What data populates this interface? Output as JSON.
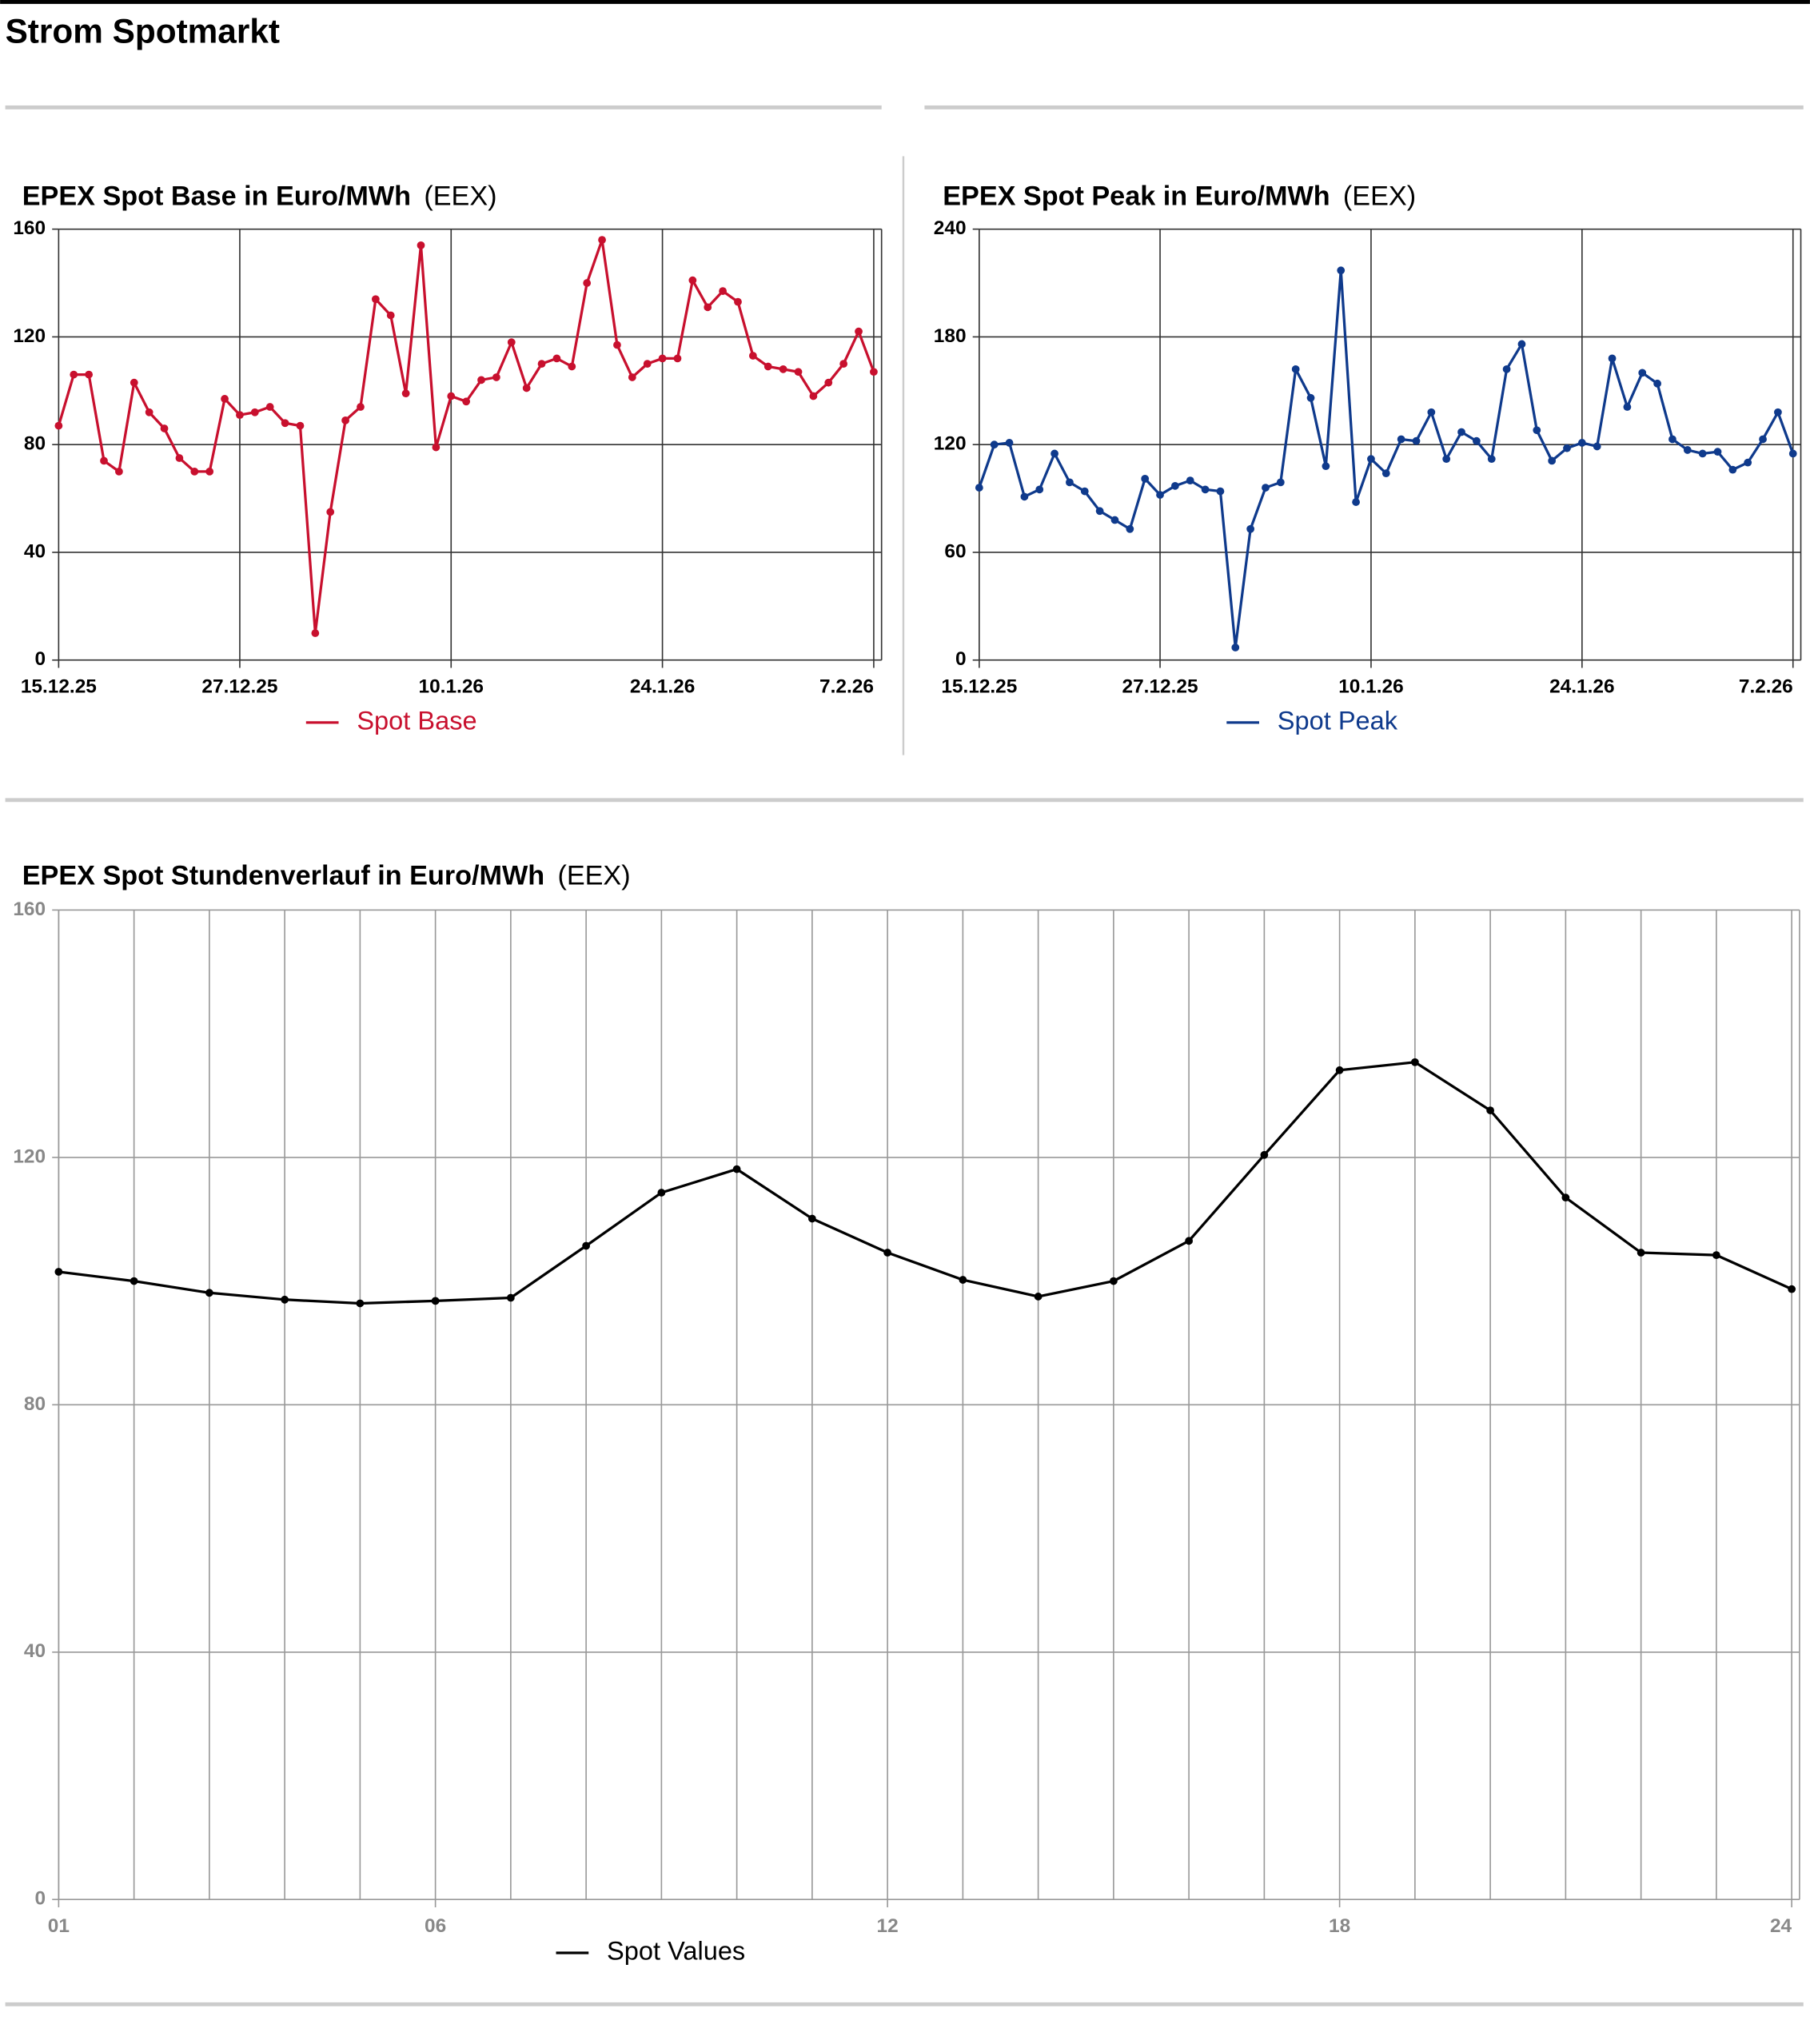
{
  "header": {
    "title": "Strom Spotmarkt"
  },
  "chart_data": [
    {
      "type": "line",
      "title": "EPEX Spot Base in Euro/MWh",
      "source": "(EEX)",
      "categories": [
        "15.12.25",
        null,
        null,
        null,
        null,
        null,
        null,
        null,
        null,
        null,
        null,
        null,
        "27.12.25",
        null,
        null,
        null,
        null,
        null,
        null,
        null,
        null,
        null,
        null,
        null,
        null,
        null,
        "10.1.26",
        null,
        null,
        null,
        null,
        null,
        null,
        null,
        null,
        null,
        null,
        null,
        null,
        null,
        "24.1.26",
        null,
        null,
        null,
        null,
        null,
        null,
        null,
        null,
        null,
        null,
        null,
        null,
        null,
        "7.2.26"
      ],
      "series": [
        {
          "name": "Spot Base",
          "color": "#c8102e",
          "values": [
            87,
            106,
            106,
            74,
            70,
            103,
            92,
            86,
            75,
            70,
            70,
            97,
            91,
            92,
            94,
            88,
            87,
            10,
            55,
            89,
            94,
            134,
            128,
            99,
            154,
            79,
            98,
            96,
            104,
            105,
            118,
            101,
            110,
            112,
            109,
            140,
            156,
            117,
            105,
            110,
            112,
            112,
            141,
            131,
            137,
            133,
            113,
            109,
            108,
            107,
            98,
            103,
            110,
            122,
            107
          ]
        }
      ],
      "ylim": [
        0,
        160
      ],
      "yticks": [
        0,
        40,
        80,
        120,
        160
      ],
      "grid": true
    },
    {
      "type": "line",
      "title": "EPEX Spot Peak in Euro/MWh",
      "source": "(EEX)",
      "categories": [
        "15.12.25",
        null,
        null,
        null,
        null,
        null,
        null,
        null,
        null,
        null,
        null,
        null,
        "27.12.25",
        null,
        null,
        null,
        null,
        null,
        null,
        null,
        null,
        null,
        null,
        null,
        null,
        null,
        "10.1.26",
        null,
        null,
        null,
        null,
        null,
        null,
        null,
        null,
        null,
        null,
        null,
        null,
        null,
        "24.1.26",
        null,
        null,
        null,
        null,
        null,
        null,
        null,
        null,
        null,
        null,
        null,
        null,
        null,
        "7.2.26"
      ],
      "series": [
        {
          "name": "Spot Peak",
          "color": "#0f3a8c",
          "values": [
            96,
            120,
            121,
            91,
            95,
            115,
            99,
            94,
            83,
            78,
            73,
            101,
            92,
            97,
            100,
            95,
            94,
            7,
            73,
            96,
            99,
            162,
            146,
            108,
            217,
            88,
            112,
            104,
            123,
            122,
            138,
            112,
            127,
            122,
            112,
            162,
            176,
            128,
            111,
            118,
            121,
            119,
            168,
            141,
            160,
            154,
            123,
            117,
            115,
            116,
            106,
            110,
            123,
            138,
            115
          ]
        }
      ],
      "ylim": [
        0,
        240
      ],
      "yticks": [
        0,
        60,
        120,
        180,
        240
      ],
      "grid": true
    },
    {
      "type": "line",
      "title": "EPEX Spot Stundenverlauf in Euro/MWh",
      "source": "(EEX)",
      "categories": [
        "01",
        null,
        null,
        null,
        null,
        "06",
        null,
        null,
        null,
        null,
        null,
        "12",
        null,
        null,
        null,
        null,
        null,
        "18",
        null,
        null,
        null,
        null,
        null,
        "24"
      ],
      "series": [
        {
          "name": "Spot Values",
          "color": "#000000",
          "values": [
            101.5,
            100,
            98.1,
            97,
            96.4,
            96.8,
            97.3,
            105.7,
            114.3,
            118.1,
            110.1,
            104.6,
            100.2,
            97.5,
            100,
            106.5,
            120.4,
            134.1,
            135.4,
            127.6,
            113.5,
            104.6,
            104.2,
            98.7
          ]
        }
      ],
      "ylim": [
        0,
        160
      ],
      "yticks": [
        0,
        40,
        80,
        120,
        160
      ],
      "grid": true
    }
  ]
}
